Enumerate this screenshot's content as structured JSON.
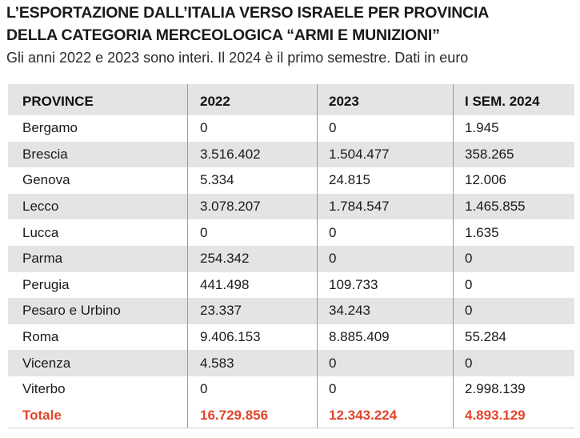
{
  "title_line1": "L’ESPORTAZIONE DALL’ITALIA VERSO ISRAELE PER PROVINCIA",
  "title_line2": "DELLA CATEGORIA MERCEOLOGICA “ARMI E MUNIZIONI”",
  "subtitle": "Gli anni 2022 e 2023 sono interi. Il 2024 è il primo semestre. Dati in euro",
  "colors": {
    "row_shade": "#e4e4e4",
    "total_text": "#e0452a",
    "divider": "#9a9a9a"
  },
  "table": {
    "headers": [
      "PROVINCE",
      "2022",
      "2023",
      "I SEM. 2024"
    ],
    "rows": [
      [
        "Bergamo",
        "0",
        "0",
        "1.945"
      ],
      [
        "Brescia",
        "3.516.402",
        "1.504.477",
        "358.265"
      ],
      [
        "Genova",
        "5.334",
        "24.815",
        "12.006"
      ],
      [
        "Lecco",
        "3.078.207",
        "1.784.547",
        "1.465.855"
      ],
      [
        "Lucca",
        "0",
        "0",
        "1.635"
      ],
      [
        "Parma",
        "254.342",
        "0",
        "0"
      ],
      [
        "Perugia",
        "441.498",
        "109.733",
        "0"
      ],
      [
        "Pesaro e Urbino",
        "23.337",
        "34.243",
        "0"
      ],
      [
        "Roma",
        "9.406.153",
        "8.885.409",
        "55.284"
      ],
      [
        "Vicenza",
        "4.583",
        "0",
        "0"
      ],
      [
        "Viterbo",
        "0",
        "0",
        "2.998.139"
      ]
    ],
    "total": [
      "Totale",
      "16.729.856",
      "12.343.224",
      "4.893.129"
    ]
  }
}
